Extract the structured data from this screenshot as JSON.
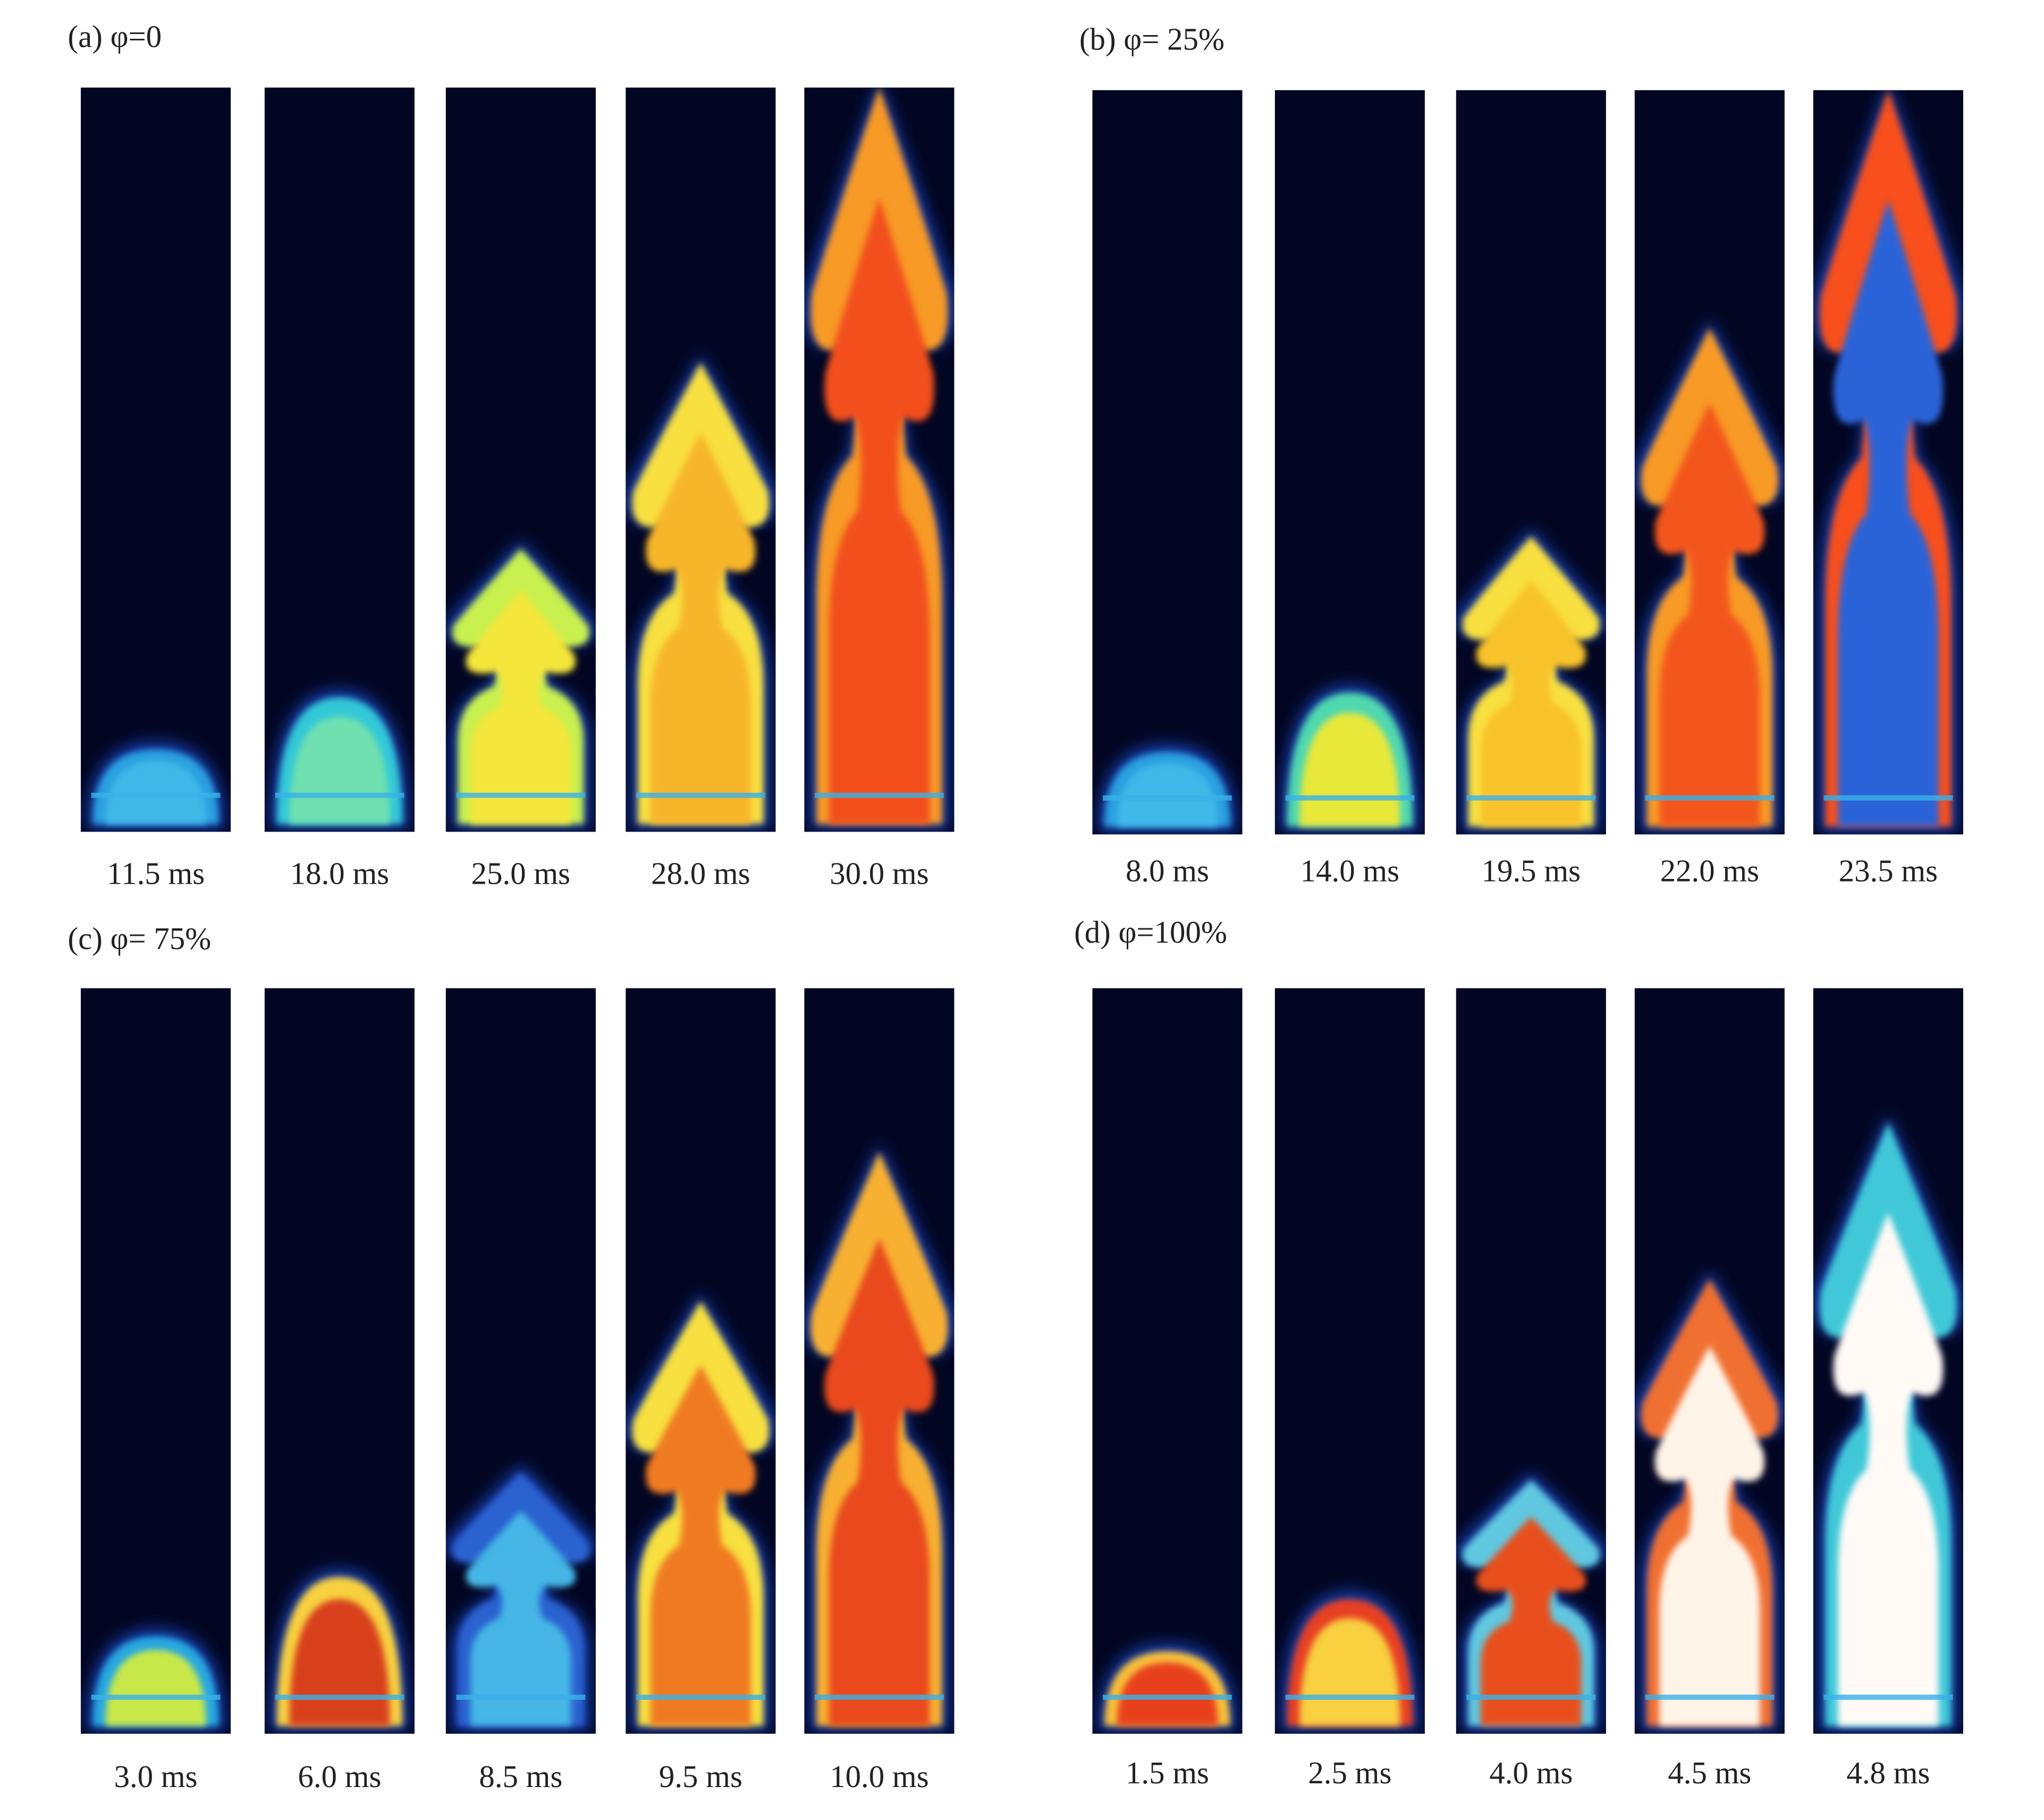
{
  "panels": [
    {
      "label": "(a) φ=0",
      "frames": [
        "11.5 ms",
        "18.0 ms",
        "25.0 ms",
        "28.0 ms",
        "30.0 ms"
      ]
    },
    {
      "label": "(b) φ= 25%",
      "frames": [
        "8.0 ms",
        "14.0 ms",
        "19.5 ms",
        "22.0 ms",
        "23.5 ms"
      ]
    },
    {
      "label": "(c) φ= 75%",
      "frames": [
        "3.0 ms",
        "6.0 ms",
        "8.5 ms",
        "9.5 ms",
        "10.0 ms"
      ]
    },
    {
      "label": "(d) φ=100%",
      "frames": [
        "1.5 ms",
        "2.5 ms",
        "4.0 ms",
        "4.5 ms",
        "4.8 ms"
      ]
    }
  ]
}
